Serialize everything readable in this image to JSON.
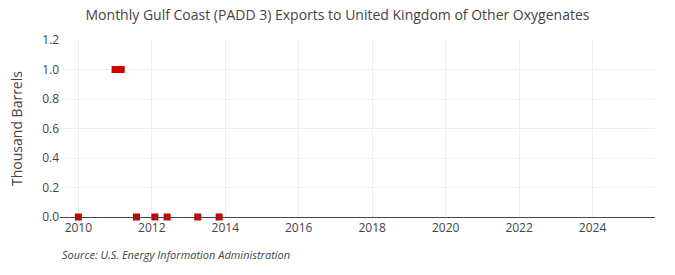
{
  "chart_data": {
    "type": "scatter",
    "title": "Monthly Gulf Coast (PADD 3) Exports to United Kingdom of Other Oxygenates",
    "ylabel": "Thousand Barrels",
    "annotations": [
      "Source: U.S. Energy Information Administration"
    ],
    "series": [
      {
        "type": "line",
        "line_style": "dashed",
        "marker": "square",
        "color": "#cc0000",
        "x": [
          2011.0,
          2011.167
        ],
        "values": [
          1.0,
          1.0
        ]
      },
      {
        "type": "scatter",
        "marker": "square",
        "color": "#cc0000",
        "x": [
          2010.0,
          2011.583,
          2012.083,
          2012.417,
          2013.25,
          2013.833
        ],
        "values": [
          0.0,
          0.0,
          0.0,
          0.0,
          0.0,
          0.0
        ]
      }
    ],
    "xlim": [
      2009.5,
      2025.7
    ],
    "xticks": [
      2010,
      2012,
      2014,
      2016,
      2018,
      2020,
      2022,
      2024
    ],
    "ylim": [
      0.0,
      1.2
    ],
    "yticks": [
      {
        "value": 0.0,
        "label": "0.0"
      },
      0.2,
      0.4,
      0.6,
      0.8,
      {
        "value": 1.0,
        "label": "1.0"
      },
      1.2
    ],
    "grid": true
  }
}
